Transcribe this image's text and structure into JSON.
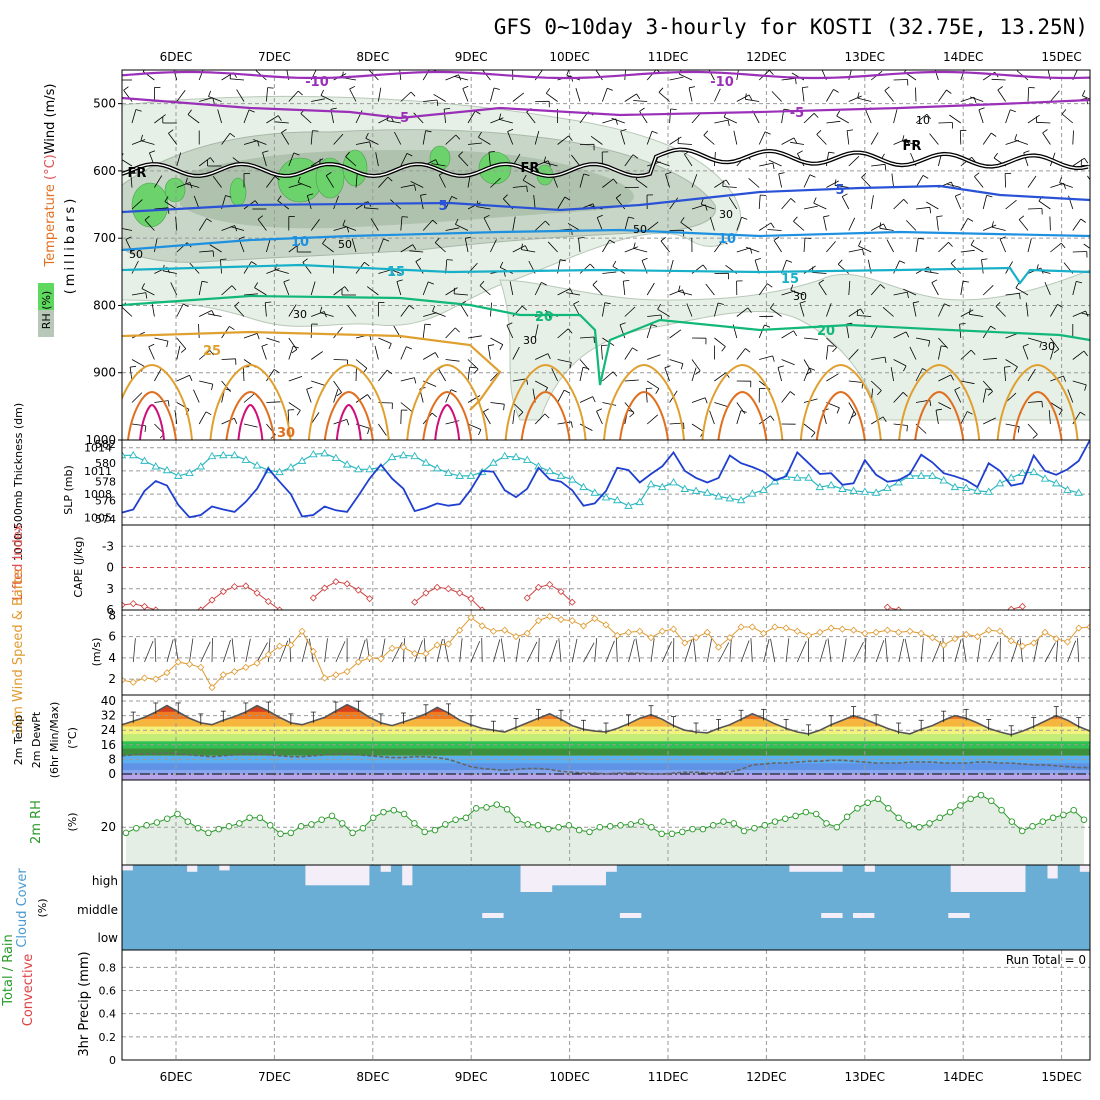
{
  "title": "GFS 0~10day 3-hourly for KOSTI (32.75E, 13.25N)",
  "colors": {
    "rh_light": "#e6f0e6",
    "rh_mid": "#c8d6c8",
    "rh_dark": "#9cb49c",
    "rh_green": "#6cd36c",
    "t_minus10": "#9b30b8",
    "t_minus5": "#9b30b8",
    "t_fr": "#000000",
    "t5": "#2a52d6",
    "t10": "#1e90e0",
    "t15": "#18b0c8",
    "t20": "#12b878",
    "t25": "#e0a030",
    "t30": "#e07020",
    "t35": "#d0107a",
    "slp": "#1f3fd0",
    "thickness": "#2ab8c0",
    "li": "#d04040",
    "wind10": "#e09a30",
    "rh2m_line": "#2a9a2a",
    "rh2m_fill": "#e4eee4",
    "cloud": "#6aaed6",
    "cloud_clear": "#f3eef8"
  },
  "chart_data": [
    {
      "id": "upper_air",
      "type": "contour",
      "xlabels": [
        "6DEC",
        "7DEC",
        "8DEC",
        "9DEC",
        "10DEC",
        "11DEC",
        "12DEC",
        "13DEC",
        "14DEC",
        "15DEC"
      ],
      "ylabel_parts": [
        "Temperature",
        " (°C)",
        "Wind",
        " (m/s)"
      ],
      "ylabel_unit": "(millibars)",
      "rh_label": "RH (%)",
      "yticks": [
        "500",
        "600",
        "700",
        "800",
        "900",
        "1000"
      ],
      "ylim": [
        450,
        1000
      ],
      "temp_labels": [
        "-10",
        "-10",
        "-5",
        "-5",
        "5",
        "5",
        "10",
        "10",
        "15",
        "15",
        "20",
        "20",
        "25",
        "30",
        "FR",
        "FR",
        "FR"
      ],
      "rh_labels": [
        "10",
        "30",
        "30",
        "50",
        "50",
        "50",
        "30",
        "30",
        "30"
      ]
    },
    {
      "id": "thickness_slp",
      "type": "line",
      "ylabel_left": "1000-500mb Thickness (dm)",
      "ylabel_right": "SLP (mb)",
      "left_ticks": [
        "574",
        "576",
        "578",
        "580",
        "582"
      ],
      "right_ticks": [
        "1005",
        "1008",
        "1011",
        "1014"
      ],
      "thickness_ylim": [
        574,
        582
      ],
      "slp_ylim": [
        1004,
        1015
      ],
      "thickness": [
        580.8,
        580.8,
        580.2,
        579.6,
        579.2,
        578.6,
        578.9,
        579.6,
        580.7,
        580.8,
        580.8,
        580.3,
        579.7,
        579.2,
        579.0,
        579.5,
        580.2,
        580.9,
        581.0,
        580.5,
        579.8,
        579.3,
        579.3,
        579.5,
        580.6,
        580.8,
        580.7,
        580.0,
        579.4,
        578.9,
        578.6,
        578.6,
        579.0,
        580.0,
        580.7,
        580.6,
        580.3,
        579.6,
        579.1,
        578.6,
        578.2,
        577.4,
        576.8,
        576.3,
        576.0,
        575.4,
        575.8,
        577.7,
        577.4,
        577.9,
        577.2,
        577.0,
        576.8,
        576.4,
        576.2,
        576.0,
        576.7,
        577.1,
        578.0,
        578.5,
        578.4,
        578.4,
        577.4,
        577.6,
        577.2,
        577.0,
        576.9,
        576.8,
        577.3,
        577.9,
        578.6,
        578.6,
        578.6,
        578.1,
        577.4,
        577.3,
        577.0,
        576.9,
        577.8,
        578.4,
        578.9,
        579.0,
        578.3,
        577.8,
        577.1,
        576.8
      ],
      "slp": [
        1005.6,
        1006.0,
        1008.4,
        1009.7,
        1009.1,
        1006.6,
        1005.0,
        1005.3,
        1006.4,
        1006.0,
        1005.7,
        1007.0,
        1008.7,
        1011.3,
        1009.6,
        1008.0,
        1005.1,
        1005.3,
        1006.4,
        1005.9,
        1005.7,
        1007.8,
        1010.0,
        1011.8,
        1010.0,
        1008.7,
        1005.8,
        1006.2,
        1006.8,
        1006.5,
        1006.7,
        1008.6,
        1011.0,
        1010.9,
        1008.5,
        1007.6,
        1008.7,
        1011.4,
        1009.9,
        1009.6,
        1008.5,
        1006.5,
        1006.8,
        1008.4,
        1011.4,
        1011.1,
        1009.5,
        1010.6,
        1011.6,
        1013.4,
        1011.0,
        1010.1,
        1009.5,
        1010.1,
        1013.0,
        1012.0,
        1011.5,
        1010.9,
        1009.8,
        1010.3,
        1013.4,
        1012.0,
        1010.6,
        1010.7,
        1009.2,
        1009.4,
        1012.4,
        1010.5,
        1009.6,
        1009.8,
        1010.6,
        1013.1,
        1012.1,
        1010.7,
        1010.3,
        1009.8,
        1008.9,
        1012.0,
        1011.0,
        1009.1,
        1009.4,
        1013.0,
        1011.0,
        1010.5,
        1011.2,
        1012.3,
        1015.0
      ]
    },
    {
      "id": "li_cape",
      "type": "line",
      "ylabel_left": "Lifted Index",
      "ylabel_right": "CAPE (J/kg)",
      "yticks": [
        "-3",
        "0",
        "3",
        "6"
      ],
      "ylim": [
        -6,
        6
      ],
      "segments": [
        {
          "x": [
            0,
            1,
            2,
            3
          ],
          "li": [
            5.3,
            5.1,
            5.5,
            6.0
          ]
        },
        {
          "x": [
            7,
            8,
            9,
            10,
            11,
            12,
            13,
            14
          ],
          "li": [
            6.0,
            4.6,
            3.4,
            2.7,
            2.6,
            3.6,
            4.8,
            6.0
          ]
        },
        {
          "x": [
            17,
            18,
            19,
            20,
            21,
            22
          ],
          "li": [
            4.3,
            2.9,
            2.0,
            2.3,
            3.2,
            4.4
          ]
        },
        {
          "x": [
            26,
            27,
            28,
            29,
            30,
            31,
            32
          ],
          "li": [
            4.9,
            3.6,
            2.8,
            3.0,
            3.6,
            4.4,
            6.0
          ]
        },
        {
          "x": [
            36,
            37,
            38,
            39,
            40
          ],
          "li": [
            4.3,
            2.8,
            2.4,
            3.4,
            4.9
          ]
        },
        {
          "x": [
            68,
            69
          ],
          "li": [
            5.6,
            6.0
          ]
        },
        {
          "x": [
            79,
            80
          ],
          "li": [
            5.9,
            5.5
          ]
        }
      ]
    },
    {
      "id": "wind10m",
      "type": "line",
      "ylabel_left": "10m Wind Speed & Barbs",
      "ylabel_unit": "(m/s)",
      "yticks": [
        "2",
        "4",
        "6",
        "8"
      ],
      "ylim": [
        0.5,
        8.5
      ],
      "values": [
        1.9,
        1.7,
        2.1,
        2.0,
        2.6,
        3.6,
        3.4,
        3.1,
        1.2,
        2.4,
        2.7,
        3.1,
        3.5,
        4.3,
        5.1,
        5.2,
        6.5,
        4.6,
        2.1,
        2.4,
        2.7,
        3.6,
        4.0,
        3.9,
        4.9,
        5.0,
        4.4,
        4.4,
        5.2,
        5.3,
        6.6,
        7.8,
        7.0,
        6.5,
        6.6,
        6.0,
        6.3,
        7.5,
        7.9,
        7.6,
        7.5,
        7.0,
        7.7,
        7.1,
        6.1,
        6.4,
        6.5,
        5.9,
        6.5,
        6.7,
        5.4,
        5.9,
        6.4,
        5.0,
        5.9,
        6.9,
        6.9,
        6.3,
        6.9,
        6.8,
        6.5,
        6.1,
        6.4,
        6.8,
        6.7,
        6.6,
        6.3,
        6.4,
        6.6,
        6.4,
        6.5,
        6.3,
        5.9,
        5.2,
        5.8,
        6.2,
        6.0,
        6.6,
        6.5,
        5.6,
        5.1,
        5.4,
        6.4,
        5.8,
        5.5,
        6.8,
        6.9
      ]
    },
    {
      "id": "temp2m",
      "type": "area",
      "ylabel_parts": [
        "2m Temp",
        "2m DewPt",
        "(6hr Min/Max)",
        "(°C)"
      ],
      "yticks": [
        "0",
        "8",
        "16",
        "24",
        "32",
        "40"
      ],
      "ylim": [
        0,
        40
      ],
      "temp": [
        27.0,
        29.0,
        31.0,
        34.0,
        37.5,
        34.0,
        30.5,
        28.0,
        27.0,
        29.5,
        31.5,
        34.0,
        37.5,
        34.5,
        31.0,
        28.0,
        27.0,
        29.0,
        31.0,
        34.5,
        38.0,
        35.0,
        31.0,
        28.0,
        26.5,
        28.5,
        30.5,
        33.0,
        36.5,
        33.5,
        29.5,
        27.0,
        25.0,
        24.0,
        23.0,
        25.5,
        28.0,
        30.5,
        33.0,
        30.0,
        26.5,
        24.5,
        23.5,
        23.0,
        25.0,
        27.5,
        30.5,
        32.5,
        30.0,
        26.5,
        24.0,
        23.0,
        22.5,
        25.0,
        27.0,
        30.0,
        33.0,
        30.5,
        27.5,
        25.0,
        23.0,
        22.0,
        24.0,
        27.0,
        29.5,
        32.0,
        30.0,
        27.5,
        25.0,
        23.0,
        22.0,
        24.5,
        26.5,
        29.5,
        32.0,
        30.5,
        28.0,
        25.0,
        23.0,
        21.5,
        23.5,
        26.0,
        29.0,
        32.0,
        29.5,
        26.0,
        23.5
      ],
      "dewpoint": [
        10.0,
        10.5,
        11.0,
        11.0,
        11.5,
        11.0,
        10.5,
        10.0,
        9.5,
        10.0,
        10.5,
        11.0,
        11.0,
        10.5,
        10.0,
        9.5,
        9.5,
        10.0,
        10.5,
        11.0,
        11.0,
        10.5,
        10.0,
        9.5,
        9.0,
        9.0,
        9.5,
        9.5,
        9.0,
        8.0,
        6.0,
        4.0,
        3.0,
        2.5,
        2.0,
        2.5,
        3.0,
        3.0,
        2.5,
        1.5,
        1.0,
        0.5,
        0.5,
        0.0,
        0.5,
        0.5,
        0.5,
        0.0,
        0.0,
        0.5,
        1.0,
        1.0,
        0.5,
        0.5,
        1.0,
        2.5,
        5.0,
        5.5,
        6.0,
        6.0,
        6.5,
        7.0,
        7.0,
        7.5,
        7.5,
        7.0,
        6.5,
        6.0,
        6.0,
        6.0,
        6.5,
        6.5,
        6.5,
        6.0,
        6.0,
        6.0,
        6.5,
        6.5,
        6.0,
        6.0,
        5.5,
        5.0,
        5.0,
        4.5,
        4.0,
        3.5,
        3.5
      ],
      "bands": [
        {
          "from": -4,
          "to": 0,
          "color": "#b8a4e8"
        },
        {
          "from": 0,
          "to": 2,
          "color": "#8aa6f0"
        },
        {
          "from": 2,
          "to": 6,
          "color": "#5f93e6"
        },
        {
          "from": 6,
          "to": 10,
          "color": "#5ab0f0"
        },
        {
          "from": 10,
          "to": 14,
          "color": "#3c8f3c"
        },
        {
          "from": 14,
          "to": 18,
          "color": "#2ec050"
        },
        {
          "from": 18,
          "to": 22,
          "color": "#c6ec78"
        },
        {
          "from": 22,
          "to": 26,
          "color": "#f4f27a"
        },
        {
          "from": 26,
          "to": 30,
          "color": "#f6b53c"
        },
        {
          "from": 30,
          "to": 34,
          "color": "#f07a1e"
        },
        {
          "from": 34,
          "to": 38,
          "color": "#d8401c"
        },
        {
          "from": 38,
          "to": 42,
          "color": "#8a1010"
        }
      ]
    },
    {
      "id": "rh2m",
      "type": "area",
      "ylabel": "2m RH",
      "ylabel_unit": "(%)",
      "yticks": [
        "20"
      ],
      "ylim": [
        0,
        45
      ],
      "values": [
        17,
        19.5,
        21,
        22.5,
        24.5,
        27,
        23,
        19.5,
        17,
        19,
        20.5,
        22,
        25,
        25,
        21,
        16.5,
        17,
        20.5,
        21.5,
        24,
        26,
        22,
        17,
        19.5,
        25,
        28,
        29,
        27,
        22,
        17.5,
        18.5,
        21.5,
        24,
        25,
        30,
        30.5,
        32,
        29.5,
        24,
        21.5,
        21,
        19,
        20,
        21,
        18.5,
        17.5,
        20,
        20.5,
        21,
        21.5,
        23,
        20,
        16.5,
        16.5,
        17.5,
        19,
        19,
        21,
        23,
        22,
        18,
        19.5,
        21,
        23,
        24.5,
        26,
        28,
        27,
        22,
        20,
        25.5,
        30,
        33,
        35,
        30,
        25,
        21,
        20,
        22,
        25,
        28,
        31.5,
        35,
        37,
        34,
        29,
        23,
        18,
        20.5,
        23,
        25,
        26.5,
        29,
        24
      ]
    },
    {
      "id": "cloud",
      "type": "area",
      "ylabel": "Cloud Cover",
      "ylabel_unit": "(%)",
      "level_labels": [
        "high",
        "middle",
        "low"
      ],
      "high": [
        80,
        100,
        100,
        100,
        100,
        100,
        75,
        100,
        100,
        80,
        100,
        100,
        100,
        100,
        100,
        100,
        100,
        25,
        25,
        25,
        25,
        25,
        25,
        100,
        75,
        100,
        25,
        100,
        100,
        100,
        100,
        100,
        100,
        100,
        100,
        100,
        100,
        0,
        0,
        0,
        25,
        25,
        25,
        25,
        25,
        75,
        100,
        100,
        100,
        100,
        100,
        100,
        100,
        100,
        100,
        100,
        100,
        100,
        100,
        100,
        100,
        100,
        75,
        75,
        75,
        75,
        75,
        100,
        100,
        75,
        100,
        100,
        100,
        100,
        100,
        100,
        100,
        0,
        0,
        0,
        0,
        0,
        0,
        0,
        100,
        100,
        50,
        100,
        100,
        75
      ],
      "middle_gaps": [
        34,
        35,
        47,
        48,
        66,
        67,
        69,
        70,
        78,
        79
      ]
    },
    {
      "id": "precip",
      "type": "bar",
      "ylabel_parts": [
        "Total / Rain",
        "Convective",
        "3hr Precip (mm)"
      ],
      "yticks": [
        "0",
        "0.2",
        "0.4",
        "0.6",
        "0.8"
      ],
      "ylim": [
        0,
        0.95
      ],
      "run_total": "Run Total = 0",
      "values": []
    }
  ]
}
